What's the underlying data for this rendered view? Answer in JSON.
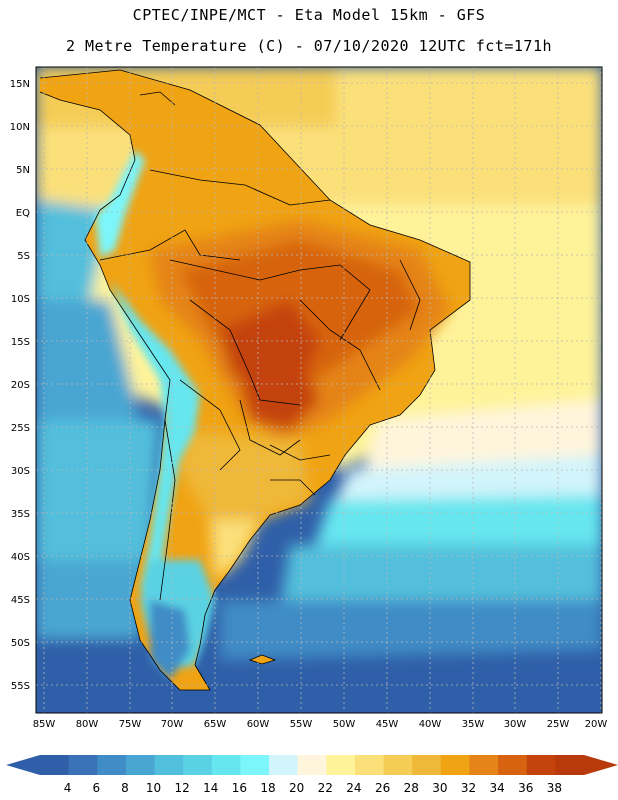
{
  "header": {
    "line1": "CPTEC/INPE/MCT -  Eta Model 15km - GFS",
    "line2": "2 Metre Temperature (C) - 07/10/2020 12UTC fct=171h"
  },
  "map": {
    "lat_labels": [
      "15N",
      "10N",
      "5N",
      "EQ",
      "5S",
      "10S",
      "15S",
      "20S",
      "25S",
      "30S",
      "35S",
      "40S",
      "45S",
      "50S",
      "55S"
    ],
    "lon_labels": [
      "85W",
      "80W",
      "75W",
      "70W",
      "65W",
      "60W",
      "55W",
      "50W",
      "45W",
      "40W",
      "35W",
      "30W",
      "25W",
      "20W"
    ]
  },
  "colorbar": {
    "labels": [
      "4",
      "6",
      "8",
      "10",
      "12",
      "14",
      "16",
      "18",
      "20",
      "22",
      "24",
      "26",
      "28",
      "30",
      "32",
      "34",
      "36",
      "38"
    ],
    "colors": [
      "#2f5fa8",
      "#3a72b8",
      "#3f8cc6",
      "#49a6d2",
      "#52bfdc",
      "#5ad2e3",
      "#66e6ef",
      "#7cf6fb",
      "#d2f4fb",
      "#fff5dc",
      "#fff39a",
      "#fbe07a",
      "#f5cc55",
      "#efb838",
      "#f0a313",
      "#e58418",
      "#d76310",
      "#c4420c",
      "#b83a0a"
    ]
  }
}
